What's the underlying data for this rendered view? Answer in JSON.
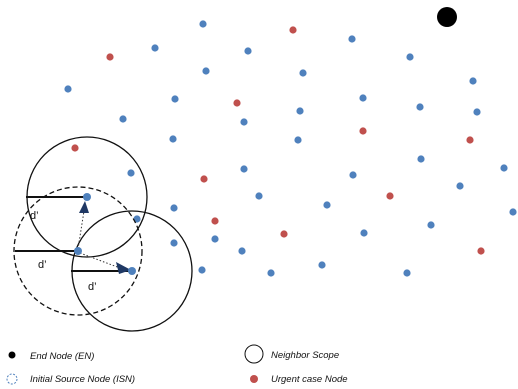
{
  "colors": {
    "blue_node": "#4F81BD",
    "red_node": "#C0504D",
    "end_node": "#000000",
    "line": "#111111"
  },
  "labels": {
    "d1": "d’",
    "d2": "d’",
    "d3": "d’"
  },
  "legend": {
    "end_node": "End Node (EN)",
    "initial_source_node": "Initial Source Node (ISN)",
    "neighbor_scope": "Neighbor Scope",
    "urgent_case_node": "Urgent case Node"
  },
  "nodes": {
    "blue_count": 40,
    "red_count": 11
  }
}
